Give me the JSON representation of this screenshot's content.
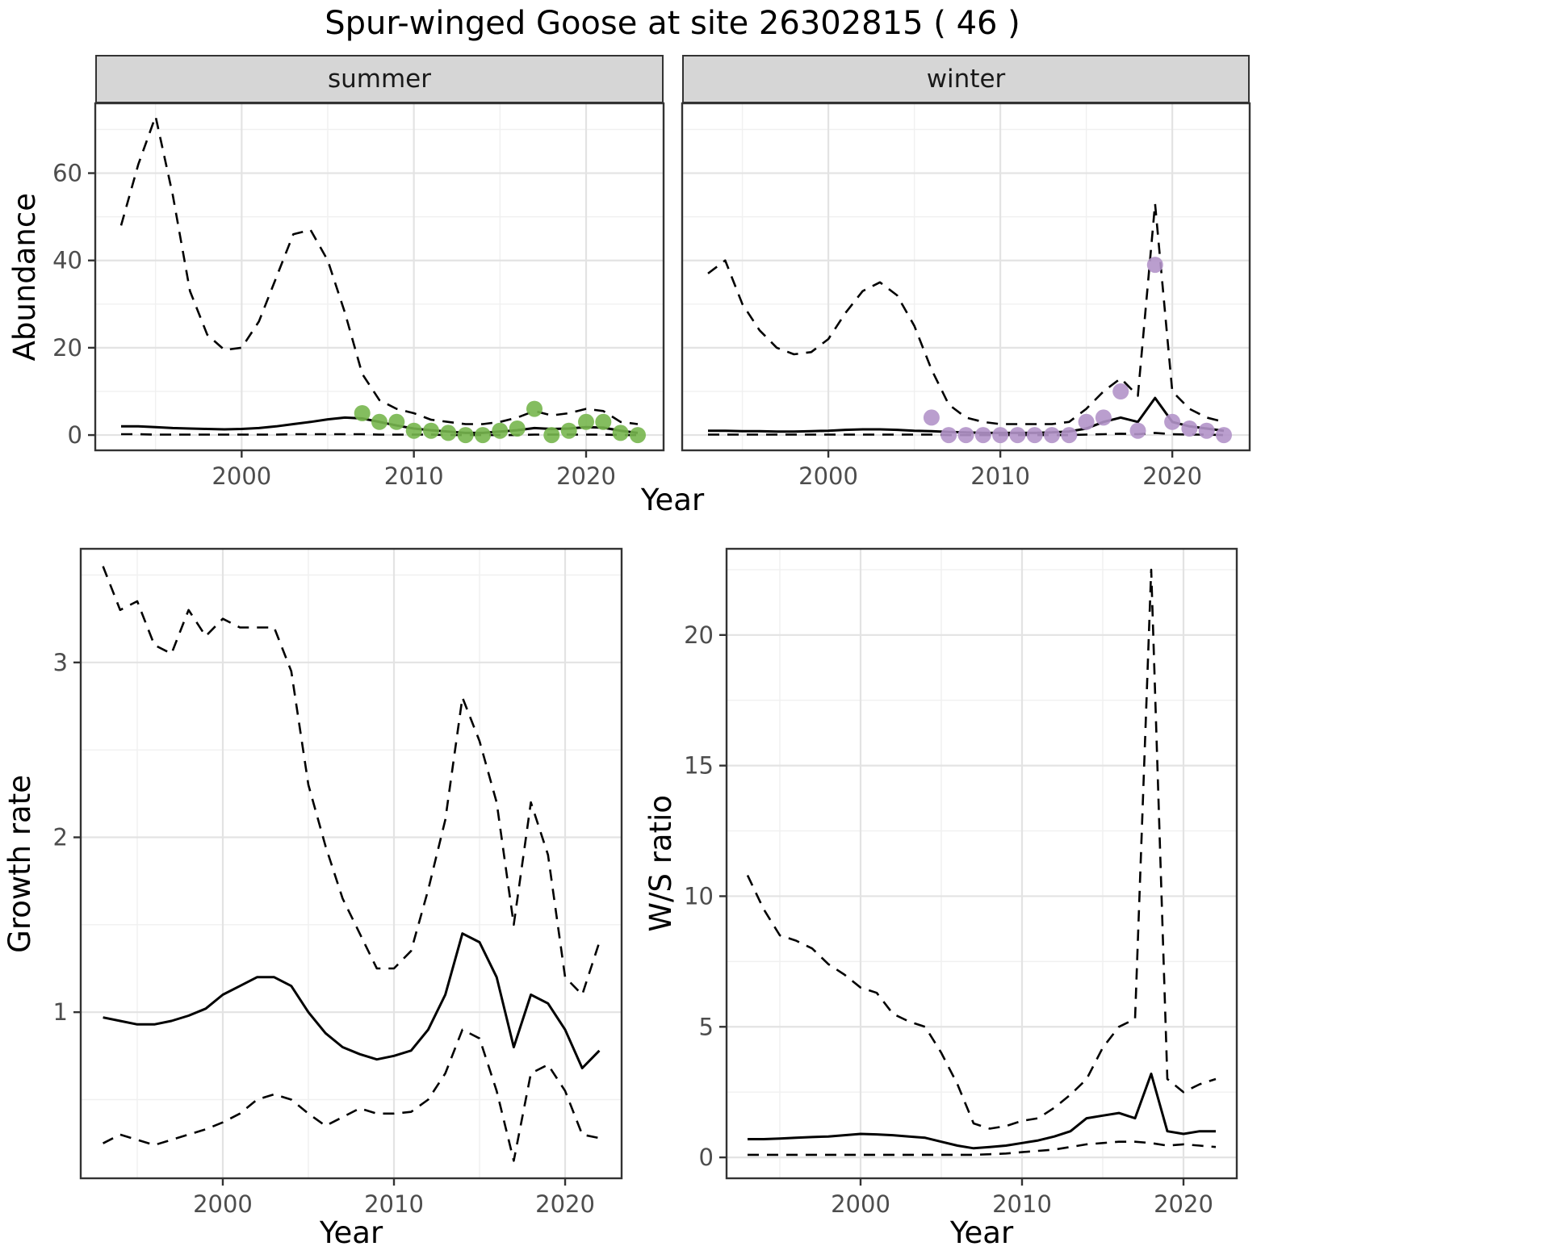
{
  "title": "Spur-winged Goose at site 26302815 ( 46 )",
  "colors": {
    "summer_points": "#77b64e",
    "winter_points": "#b394c9",
    "line": "#000000",
    "strip_bg": "#d6d6d6",
    "grid_major": "#e3e3e3",
    "grid_minor": "#f0f0f0",
    "panel_border": "#333333",
    "tick_text": "#4d4d4d"
  },
  "chart_data": [
    {
      "id": "summer-abundance",
      "type": "line",
      "facet_label": "summer",
      "ylabel": "Abundance",
      "xlabel": "Year",
      "xlim": [
        1991.5,
        2024.5
      ],
      "ylim": [
        -3.5,
        76
      ],
      "xticks": [
        2000,
        2010,
        2020
      ],
      "yticks": [
        0,
        20,
        40,
        60
      ],
      "grid": true,
      "legend": "none",
      "x": [
        1993,
        1994,
        1995,
        1996,
        1997,
        1998,
        1999,
        2000,
        2001,
        2002,
        2003,
        2004,
        2005,
        2006,
        2007,
        2008,
        2009,
        2010,
        2011,
        2012,
        2013,
        2014,
        2015,
        2016,
        2017,
        2018,
        2019,
        2020,
        2021,
        2022,
        2023
      ],
      "series": [
        {
          "name": "upper_95ci",
          "style": "dashed",
          "values": [
            48,
            62,
            73,
            55,
            33,
            23,
            19.5,
            20,
            26,
            36,
            46,
            47,
            40,
            28,
            14,
            8,
            6,
            5,
            3.5,
            3,
            2.5,
            2.5,
            3,
            4,
            5.5,
            4.5,
            5,
            6,
            5.5,
            3,
            2.5
          ]
        },
        {
          "name": "estimate",
          "style": "solid",
          "values": [
            2,
            2,
            1.8,
            1.6,
            1.5,
            1.4,
            1.3,
            1.4,
            1.6,
            2,
            2.5,
            3,
            3.6,
            4,
            3.8,
            3,
            2.2,
            1.5,
            1.1,
            0.8,
            0.5,
            0.5,
            0.8,
            1.1,
            1.6,
            1.4,
            1.5,
            1.8,
            1.7,
            1,
            0.5
          ]
        },
        {
          "name": "lower_95ci",
          "style": "dashed",
          "values": [
            0.2,
            0.2,
            0.1,
            0.1,
            0.1,
            0.1,
            0.1,
            0.1,
            0.1,
            0.1,
            0.2,
            0.2,
            0.2,
            0.2,
            0.2,
            0.1,
            0.1,
            0.1,
            0.1,
            0,
            0,
            0,
            0,
            0,
            0.1,
            0.1,
            0.1,
            0.1,
            0.1,
            0,
            0
          ]
        }
      ],
      "points": {
        "name": "observed_counts",
        "color_key": "summer_points",
        "x": [
          2007,
          2008,
          2009,
          2010,
          2011,
          2012,
          2013,
          2014,
          2015,
          2016,
          2017,
          2018,
          2019,
          2020,
          2021,
          2022,
          2023
        ],
        "y": [
          5,
          3,
          3,
          1,
          1,
          0.5,
          0,
          0,
          1,
          1.5,
          6,
          0,
          1,
          3,
          3,
          0.5,
          0
        ]
      }
    },
    {
      "id": "winter-abundance",
      "type": "line",
      "facet_label": "winter",
      "ylabel": "Abundance",
      "xlabel": "Year",
      "xlim": [
        1991.5,
        2024.5
      ],
      "ylim": [
        -3.5,
        76
      ],
      "xticks": [
        2000,
        2010,
        2020
      ],
      "yticks": [
        0,
        20,
        40,
        60
      ],
      "grid": true,
      "legend": "none",
      "x": [
        1993,
        1994,
        1995,
        1996,
        1997,
        1998,
        1999,
        2000,
        2001,
        2002,
        2003,
        2004,
        2005,
        2006,
        2007,
        2008,
        2009,
        2010,
        2011,
        2012,
        2013,
        2014,
        2015,
        2016,
        2017,
        2018,
        2019,
        2020,
        2021,
        2022,
        2023
      ],
      "series": [
        {
          "name": "upper_95ci",
          "style": "dashed",
          "values": [
            37,
            40,
            30,
            24,
            20,
            18.5,
            19,
            22,
            28,
            33,
            35,
            32,
            25,
            15,
            7,
            4,
            3,
            2.5,
            2.5,
            2.5,
            2.5,
            3,
            6,
            10,
            13,
            9,
            53,
            10,
            6,
            4,
            3
          ]
        },
        {
          "name": "estimate",
          "style": "solid",
          "values": [
            1,
            1,
            0.9,
            0.9,
            0.8,
            0.8,
            0.9,
            1,
            1.2,
            1.3,
            1.3,
            1.2,
            1,
            0.9,
            0.7,
            0.6,
            0.5,
            0.5,
            0.5,
            0.5,
            0.6,
            0.8,
            1.5,
            3,
            4,
            3,
            8.5,
            3,
            2,
            1.5,
            1
          ]
        },
        {
          "name": "lower_95ci",
          "style": "dashed",
          "values": [
            0.1,
            0.1,
            0.1,
            0.1,
            0.1,
            0.1,
            0.1,
            0.1,
            0.1,
            0.1,
            0.1,
            0.1,
            0.1,
            0.1,
            0,
            0,
            0,
            0,
            0,
            0,
            0,
            0,
            0.1,
            0.2,
            0.3,
            0.2,
            0.5,
            0.2,
            0.1,
            0.1,
            0
          ]
        }
      ],
      "points": {
        "name": "observed_counts",
        "color_key": "winter_points",
        "x": [
          2006,
          2007,
          2008,
          2009,
          2010,
          2011,
          2012,
          2013,
          2014,
          2015,
          2016,
          2017,
          2018,
          2019,
          2020,
          2021,
          2022,
          2023
        ],
        "y": [
          4,
          0,
          0,
          0,
          0,
          0,
          0,
          0,
          0,
          3,
          4,
          10,
          1,
          39,
          3,
          1.5,
          1,
          0
        ]
      }
    },
    {
      "id": "growth-rate",
      "type": "line",
      "facet_label": "",
      "ylabel": "Growth rate",
      "xlabel": "Year",
      "xlim": [
        1991.7,
        2023.3
      ],
      "ylim": [
        0.05,
        3.65
      ],
      "xticks": [
        2000,
        2010,
        2020
      ],
      "yticks": [
        1,
        2,
        3
      ],
      "grid": true,
      "legend": "none",
      "x": [
        1993,
        1994,
        1995,
        1996,
        1997,
        1998,
        1999,
        2000,
        2001,
        2002,
        2003,
        2004,
        2005,
        2006,
        2007,
        2008,
        2009,
        2010,
        2011,
        2012,
        2013,
        2014,
        2015,
        2016,
        2017,
        2018,
        2019,
        2020,
        2021,
        2022
      ],
      "series": [
        {
          "name": "upper_95ci",
          "style": "dashed",
          "values": [
            3.55,
            3.3,
            3.35,
            3.1,
            3.05,
            3.3,
            3.15,
            3.25,
            3.2,
            3.2,
            3.2,
            2.95,
            2.3,
            1.95,
            1.65,
            1.45,
            1.25,
            1.25,
            1.35,
            1.7,
            2.1,
            2.8,
            2.55,
            2.2,
            1.5,
            2.2,
            1.9,
            1.2,
            1.1,
            1.4
          ]
        },
        {
          "name": "estimate",
          "style": "solid",
          "values": [
            0.97,
            0.95,
            0.93,
            0.93,
            0.95,
            0.98,
            1.02,
            1.1,
            1.15,
            1.2,
            1.2,
            1.15,
            1.0,
            0.88,
            0.8,
            0.76,
            0.73,
            0.75,
            0.78,
            0.9,
            1.1,
            1.45,
            1.4,
            1.2,
            0.8,
            1.1,
            1.05,
            0.9,
            0.68,
            0.78
          ]
        },
        {
          "name": "lower_95ci",
          "style": "dashed",
          "values": [
            0.25,
            0.3,
            0.27,
            0.24,
            0.27,
            0.3,
            0.33,
            0.37,
            0.42,
            0.5,
            0.53,
            0.5,
            0.42,
            0.35,
            0.4,
            0.45,
            0.42,
            0.42,
            0.43,
            0.5,
            0.65,
            0.9,
            0.85,
            0.55,
            0.15,
            0.65,
            0.7,
            0.55,
            0.3,
            0.28
          ]
        }
      ]
    },
    {
      "id": "ws-ratio",
      "type": "line",
      "facet_label": "",
      "ylabel": "W/S ratio",
      "xlabel": "Year",
      "xlim": [
        1991.7,
        2023.3
      ],
      "ylim": [
        -0.8,
        23.3
      ],
      "xticks": [
        2000,
        2010,
        2020
      ],
      "yticks": [
        0,
        5,
        10,
        15,
        20
      ],
      "grid": true,
      "legend": "none",
      "x": [
        1993,
        1994,
        1995,
        1996,
        1997,
        1998,
        1999,
        2000,
        2001,
        2002,
        2003,
        2004,
        2005,
        2006,
        2007,
        2008,
        2009,
        2010,
        2011,
        2012,
        2013,
        2014,
        2015,
        2016,
        2017,
        2018,
        2019,
        2020,
        2021,
        2022
      ],
      "series": [
        {
          "name": "upper_95ci",
          "style": "dashed",
          "values": [
            10.8,
            9.5,
            8.5,
            8.3,
            8.0,
            7.4,
            7.0,
            6.5,
            6.3,
            5.5,
            5.2,
            5.0,
            4.0,
            2.8,
            1.3,
            1.1,
            1.2,
            1.4,
            1.5,
            1.9,
            2.4,
            3.0,
            4.2,
            5.0,
            5.3,
            22.5,
            3.0,
            2.5,
            2.8,
            3.0
          ]
        },
        {
          "name": "estimate",
          "style": "solid",
          "values": [
            0.7,
            0.7,
            0.72,
            0.75,
            0.78,
            0.8,
            0.85,
            0.9,
            0.88,
            0.85,
            0.8,
            0.75,
            0.6,
            0.45,
            0.35,
            0.4,
            0.45,
            0.55,
            0.65,
            0.8,
            1.0,
            1.5,
            1.6,
            1.7,
            1.5,
            3.2,
            1.0,
            0.9,
            1.0,
            1.0
          ]
        },
        {
          "name": "lower_95ci",
          "style": "dashed",
          "values": [
            0.1,
            0.1,
            0.1,
            0.1,
            0.1,
            0.1,
            0.1,
            0.1,
            0.1,
            0.1,
            0.1,
            0.1,
            0.1,
            0.1,
            0.1,
            0.12,
            0.15,
            0.2,
            0.25,
            0.3,
            0.4,
            0.5,
            0.55,
            0.6,
            0.6,
            0.55,
            0.45,
            0.5,
            0.45,
            0.4
          ]
        }
      ]
    }
  ]
}
